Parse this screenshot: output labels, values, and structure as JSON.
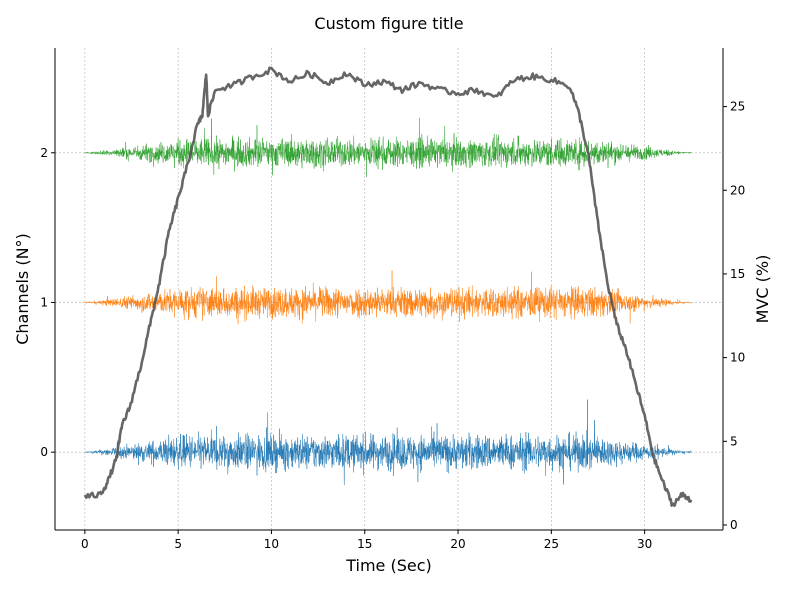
{
  "chart_data": {
    "type": "line",
    "title": "Custom figure title",
    "xlabel": "Time (Sec)",
    "ylabel": "Channels (N°)",
    "ylabel_right": "MVC (%)",
    "xlim": [
      -1.6,
      34.2
    ],
    "ylim": [
      -0.52,
      2.7
    ],
    "ylim_right": [
      -0.3,
      28.5
    ],
    "x_ticks": [
      0,
      5,
      10,
      15,
      20,
      25,
      30
    ],
    "y_ticks": [
      0,
      1,
      2
    ],
    "y_ticks_right": [
      0,
      5,
      10,
      15,
      20,
      25
    ],
    "grid": "dashed, vertical and at channel levels",
    "duration": 32.5,
    "emg_channels": [
      {
        "channel": 0,
        "color": "#1f77b4",
        "baseline": 0,
        "amplitude": 0.16
      },
      {
        "channel": 1,
        "color": "#ff7f0e",
        "baseline": 1,
        "amplitude": 0.14
      },
      {
        "channel": 2,
        "color": "#2ca02c",
        "baseline": 2,
        "amplitude": 0.13
      }
    ],
    "mvc_series": {
      "color": "#555555",
      "x": [
        0,
        0.8,
        1.2,
        1.7,
        2.0,
        2.4,
        3.0,
        3.5,
        4.0,
        4.5,
        5.0,
        5.5,
        6.0,
        6.3,
        6.5,
        6.6,
        7.0,
        8.0,
        9.0,
        10.0,
        11.0,
        12.0,
        13.0,
        14.0,
        15.0,
        16.0,
        17.0,
        18.0,
        19.0,
        20.0,
        21.0,
        22.0,
        23.0,
        24.0,
        25.0,
        26.0,
        26.5,
        27.0,
        27.5,
        28.0,
        28.5,
        29.0,
        29.5,
        30.0,
        30.5,
        31.0,
        31.5,
        32.0,
        32.5
      ],
      "values": [
        1.7,
        1.8,
        2.5,
        4.0,
        6.0,
        7.0,
        9.5,
        12.0,
        14.5,
        17.5,
        19.5,
        21.5,
        23.8,
        24.5,
        27.0,
        24.5,
        26.0,
        26.3,
        26.8,
        27.2,
        26.5,
        27.0,
        26.4,
        27.0,
        26.3,
        26.5,
        26.0,
        26.4,
        26.0,
        25.8,
        26.0,
        25.5,
        26.6,
        26.8,
        26.6,
        26.2,
        24.5,
        22.0,
        18.0,
        14.5,
        12.0,
        10.5,
        8.5,
        6.5,
        4.0,
        2.5,
        1.2,
        1.8,
        1.5
      ]
    }
  }
}
